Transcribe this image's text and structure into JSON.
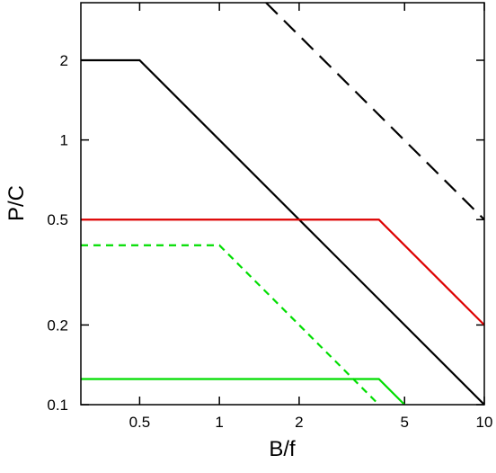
{
  "chart_data": {
    "type": "line",
    "xlabel": "B/f",
    "ylabel": "P/C",
    "xscale": "log",
    "yscale": "log",
    "xlim": [
      0.3,
      10
    ],
    "ylim": [
      0.1,
      3.3
    ],
    "grid": false,
    "x_ticks": [
      {
        "value": 0.5,
        "label": "0.5"
      },
      {
        "value": 1,
        "label": "1"
      },
      {
        "value": 2,
        "label": "2"
      },
      {
        "value": 5,
        "label": "5"
      },
      {
        "value": 10,
        "label": "10"
      }
    ],
    "y_ticks": [
      {
        "value": 0.1,
        "label": "0.1"
      },
      {
        "value": 0.2,
        "label": "0.2"
      },
      {
        "value": 0.5,
        "label": "0.5"
      },
      {
        "value": 1,
        "label": "1"
      },
      {
        "value": 2,
        "label": "2"
      }
    ],
    "series": [
      {
        "id": "black-solid",
        "color": "#000000",
        "style": "solid",
        "points": [
          [
            0.3,
            2
          ],
          [
            0.5,
            2
          ],
          [
            10,
            0.1
          ]
        ]
      },
      {
        "id": "black-dashed",
        "color": "#000000",
        "style": "dashed",
        "points": [
          [
            1.5,
            3.3
          ],
          [
            10,
            0.5
          ]
        ]
      },
      {
        "id": "red-solid",
        "color": "#dd0000",
        "style": "solid",
        "points": [
          [
            0.3,
            0.5
          ],
          [
            4,
            0.5
          ],
          [
            10,
            0.2
          ]
        ]
      },
      {
        "id": "green-dashed",
        "color": "#00dd00",
        "style": "dashed",
        "points": [
          [
            0.3,
            0.4
          ],
          [
            1,
            0.4
          ],
          [
            4,
            0.1
          ]
        ]
      },
      {
        "id": "green-solid",
        "color": "#00dd00",
        "style": "solid",
        "points": [
          [
            0.3,
            0.125
          ],
          [
            4,
            0.125
          ],
          [
            5,
            0.1
          ]
        ]
      }
    ]
  }
}
